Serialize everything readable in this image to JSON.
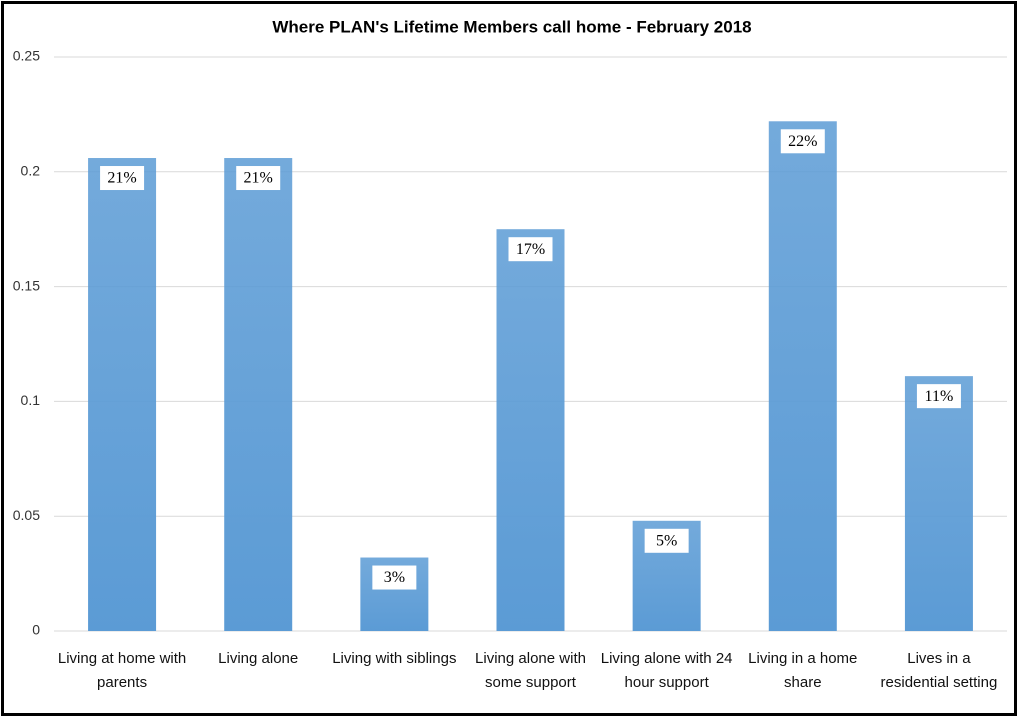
{
  "chart_data": {
    "type": "bar",
    "title": "Where PLAN's Lifetime Members call home - February 2018",
    "categories": [
      "Living at home with parents",
      "Living alone",
      "Living with siblings",
      "Living alone with some support",
      "Living alone with 24 hour support",
      "Living in a home share",
      "Lives in a residential setting"
    ],
    "values": [
      0.206,
      0.206,
      0.032,
      0.175,
      0.048,
      0.222,
      0.111
    ],
    "value_labels": [
      "21%",
      "21%",
      "3%",
      "17%",
      "5%",
      "22%",
      "11%"
    ],
    "color": "#5b9bd5",
    "ylim": [
      0,
      0.25
    ],
    "yticks": [
      0,
      0.05,
      0.1,
      0.15,
      0.2,
      0.25
    ],
    "grid": true
  }
}
